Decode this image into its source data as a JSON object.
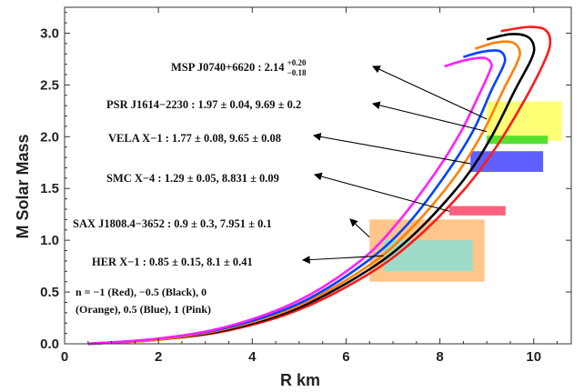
{
  "chart_data": {
    "type": "line",
    "xlabel": "R  km",
    "ylabel": "M  Solar Mass",
    "xlim": [
      0,
      10.8
    ],
    "ylim": [
      0,
      3.25
    ],
    "x_ticks": [
      0,
      2,
      4,
      6,
      8,
      10
    ],
    "y_ticks": [
      0.0,
      0.5,
      1.0,
      1.5,
      2.0,
      2.5,
      3.0
    ],
    "x_tick_labels": [
      "0",
      "2",
      "4",
      "6",
      "8",
      "10"
    ],
    "y_tick_labels": [
      "0.0",
      "0.5",
      "1.0",
      "1.5",
      "2.0",
      "2.5",
      "3.0"
    ],
    "grid": false,
    "series": [
      {
        "name": "Red",
        "color": "#ff1a1a",
        "points": [
          [
            0.5,
            0.0
          ],
          [
            2.0,
            0.04
          ],
          [
            3.5,
            0.13
          ],
          [
            5.0,
            0.33
          ],
          [
            6.5,
            0.68
          ],
          [
            7.5,
            1.02
          ],
          [
            8.5,
            1.48
          ],
          [
            9.2,
            1.9
          ],
          [
            9.8,
            2.35
          ],
          [
            10.2,
            2.7
          ],
          [
            10.35,
            2.9
          ],
          [
            10.25,
            3.03
          ],
          [
            9.9,
            3.06
          ],
          [
            9.3,
            3.02
          ]
        ]
      },
      {
        "name": "Black",
        "color": "#000000",
        "points": [
          [
            0.5,
            0.0
          ],
          [
            2.0,
            0.04
          ],
          [
            3.5,
            0.14
          ],
          [
            5.0,
            0.35
          ],
          [
            6.5,
            0.72
          ],
          [
            7.5,
            1.08
          ],
          [
            8.5,
            1.58
          ],
          [
            9.1,
            2.0
          ],
          [
            9.6,
            2.45
          ],
          [
            9.95,
            2.75
          ],
          [
            10.0,
            2.88
          ],
          [
            9.85,
            2.97
          ],
          [
            9.5,
            2.99
          ],
          [
            9.0,
            2.94
          ]
        ]
      },
      {
        "name": "Orange",
        "color": "#ff8000",
        "points": [
          [
            0.5,
            0.0
          ],
          [
            2.0,
            0.04
          ],
          [
            3.5,
            0.15
          ],
          [
            5.0,
            0.37
          ],
          [
            6.5,
            0.76
          ],
          [
            7.4,
            1.12
          ],
          [
            8.3,
            1.6
          ],
          [
            8.9,
            2.03
          ],
          [
            9.35,
            2.45
          ],
          [
            9.65,
            2.72
          ],
          [
            9.7,
            2.83
          ],
          [
            9.55,
            2.91
          ],
          [
            9.2,
            2.91
          ],
          [
            8.75,
            2.85
          ]
        ]
      },
      {
        "name": "Blue",
        "color": "#0044ff",
        "points": [
          [
            0.5,
            0.0
          ],
          [
            2.0,
            0.05
          ],
          [
            3.5,
            0.16
          ],
          [
            5.0,
            0.39
          ],
          [
            6.4,
            0.78
          ],
          [
            7.3,
            1.15
          ],
          [
            8.1,
            1.62
          ],
          [
            8.7,
            2.05
          ],
          [
            9.1,
            2.45
          ],
          [
            9.35,
            2.68
          ],
          [
            9.38,
            2.77
          ],
          [
            9.25,
            2.83
          ],
          [
            8.9,
            2.82
          ],
          [
            8.5,
            2.77
          ]
        ]
      },
      {
        "name": "Pink",
        "color": "#ff20ff",
        "points": [
          [
            0.5,
            0.0
          ],
          [
            2.0,
            0.05
          ],
          [
            3.5,
            0.17
          ],
          [
            5.0,
            0.42
          ],
          [
            6.3,
            0.8
          ],
          [
            7.1,
            1.17
          ],
          [
            7.9,
            1.65
          ],
          [
            8.45,
            2.05
          ],
          [
            8.85,
            2.42
          ],
          [
            9.05,
            2.62
          ],
          [
            9.1,
            2.7
          ],
          [
            8.95,
            2.76
          ],
          [
            8.55,
            2.74
          ],
          [
            8.1,
            2.68
          ]
        ]
      }
    ],
    "regions": [
      {
        "label": "MSP J0740+6620",
        "x": [
          9.0,
          10.6
        ],
        "y": [
          1.96,
          2.34
        ],
        "color": "#ffff66",
        "opacity": 0.9
      },
      {
        "label": "PSR J1614-2230",
        "x": [
          9.0,
          10.3
        ],
        "y": [
          1.93,
          2.01
        ],
        "color": "#44dd22",
        "opacity": 0.9
      },
      {
        "label": "VELA X-1",
        "x": [
          8.65,
          10.2
        ],
        "y": [
          1.66,
          1.86
        ],
        "color": "#4444ff",
        "opacity": 0.85
      },
      {
        "label": "SMC X-4",
        "x": [
          8.2,
          9.4
        ],
        "y": [
          1.24,
          1.33
        ],
        "color": "#ff4466",
        "opacity": 0.85
      },
      {
        "label": "SAX J1808.4-3652",
        "x": [
          6.5,
          8.95
        ],
        "y": [
          0.6,
          1.2
        ],
        "color": "#ffbb77",
        "opacity": 0.85
      },
      {
        "label": "HER X-1",
        "x": [
          6.8,
          8.7
        ],
        "y": [
          0.7,
          1.0
        ],
        "color": "#99ddcc",
        "opacity": 0.95
      }
    ],
    "annotations": [
      {
        "text": "MSP J0740+6620 : 2.14",
        "sup": "+0.20",
        "sub": "−0.18"
      },
      {
        "text": "PSR J1614−2230 : 1.97 ± 0.04,  9.69 ± 0.2"
      },
      {
        "text": "VELA X−1 : 1.77 ± 0.08,  9.65 ± 0.08"
      },
      {
        "text": "SMC X−4 : 1.29 ± 0.05,  8.831 ± 0.09"
      },
      {
        "text": "SAX J1808.4−3652 : 0.9 ± 0.3,  7.951 ± 0.1"
      },
      {
        "text": "HER X−1 : 0.85 ± 0.15,  8.1 ± 0.41"
      }
    ],
    "note_lines": [
      "n = −1 (Red), −0.5 (Black), 0",
      "(Orange), 0.5 (Blue), 1 (Pink)"
    ]
  }
}
